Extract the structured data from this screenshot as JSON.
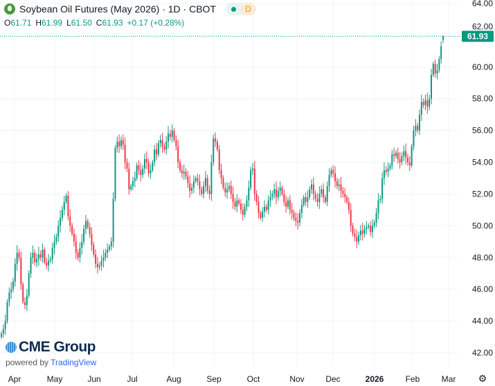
{
  "header": {
    "title": "Soybean Oil Futures (May 2026) · 1D · CBOT",
    "badge_letter": "D",
    "ohlc": {
      "o_label": "O",
      "o": "61.71",
      "h_label": "H",
      "h": "61.99",
      "l_label": "L",
      "l": "61.50",
      "c_label": "C",
      "c": "61.93",
      "change": "+0.17 (+0.28%)"
    }
  },
  "branding": {
    "logo": "CME Group",
    "powered_by": "powered by",
    "provider": "TradingView"
  },
  "colors": {
    "up": "#089981",
    "down": "#f23645",
    "grid": "#f0f3fa",
    "last_price": "#089981"
  },
  "icons": {
    "symbol": "soybean-oil-drop-icon",
    "settings": "settings-icon"
  },
  "chart_data": {
    "type": "candlestick",
    "interval": "1D",
    "last_price_label": "61.93",
    "last_bar": {
      "open": 61.71,
      "high": 61.99,
      "low": 61.5,
      "close": 61.93
    },
    "ylim": [
      42,
      64
    ],
    "y_ticks": [
      "64.00",
      "62.00",
      "60.00",
      "58.00",
      "56.00",
      "54.00",
      "52.00",
      "50.00",
      "48.00",
      "46.00",
      "44.00",
      "42.00"
    ],
    "x_ticks": [
      "Apr",
      "May",
      "Jun",
      "Jul",
      "Aug",
      "Sep",
      "Oct",
      "Nov",
      "Dec",
      "2026",
      "Feb",
      "Mar"
    ],
    "grid": true,
    "months": [
      {
        "label": "Apr",
        "closes": [
          43.2,
          43.5,
          44.0,
          45.2,
          45.8,
          46.0,
          46.5,
          47.6,
          48.3,
          48.0,
          46.3,
          45.2,
          45.0,
          45.6,
          47.0,
          48.0,
          48.3,
          47.7,
          47.9,
          48.2,
          48.0,
          48.5,
          47.7,
          47.5,
          47.8,
          47.9,
          48.6,
          49.0
        ]
      },
      {
        "label": "May",
        "closes": [
          49.3,
          50.0,
          50.5,
          51.0,
          51.5,
          51.9,
          50.6,
          50.0,
          49.5,
          49.0,
          48.3,
          48.0,
          48.6,
          49.0,
          49.8,
          50.3,
          49.9,
          49.5,
          48.8,
          48.2,
          47.6
        ]
      },
      {
        "label": "Jun",
        "closes": [
          47.4,
          47.5,
          47.8,
          48.0,
          48.3,
          48.5,
          48.7,
          49.0,
          51.7,
          54.9,
          55.3,
          55.0,
          55.4,
          55.1,
          54.0,
          53.6,
          52.3,
          52.5,
          52.8
        ]
      },
      {
        "label": "Jul",
        "closes": [
          53.0,
          53.8,
          53.5,
          53.2,
          53.6,
          54.2,
          54.0,
          53.3,
          53.5,
          54.0,
          54.8,
          54.5,
          55.2,
          55.4,
          55.0,
          54.8,
          55.3,
          55.8,
          55.6,
          56.0,
          55.4
        ]
      },
      {
        "label": "Aug",
        "closes": [
          55.0,
          54.0,
          53.5,
          53.3,
          53.4,
          53.1,
          52.7,
          52.2,
          52.4,
          52.8,
          53.0,
          52.8,
          52.3,
          52.0,
          52.5,
          53.0,
          52.2,
          52.0,
          54.0,
          55.5
        ]
      },
      {
        "label": "Sep",
        "closes": [
          55.3,
          54.8,
          53.5,
          53.0,
          52.4,
          52.1,
          52.3,
          52.5,
          52.0,
          51.5,
          51.2,
          51.6,
          51.4,
          51.0,
          50.7,
          51.2,
          51.6,
          52.4,
          53.5,
          53.6
        ]
      },
      {
        "label": "Oct",
        "closes": [
          52.0,
          51.5,
          50.8,
          50.5,
          50.9,
          51.2,
          51.0,
          51.6,
          51.8,
          52.0,
          52.3,
          51.8,
          52.2,
          52.4,
          52.0,
          51.5,
          51.2,
          51.6,
          51.0,
          50.8,
          50.5,
          50.3
        ]
      },
      {
        "label": "Nov",
        "closes": [
          50.2,
          50.8,
          51.3,
          51.8,
          51.5,
          51.8,
          52.3,
          52.6,
          52.0,
          51.7,
          51.5,
          52.0,
          52.3,
          51.8,
          51.5,
          52.5,
          53.2,
          53.5
        ]
      },
      {
        "label": "Dec",
        "closes": [
          53.3,
          52.8,
          52.5,
          52.6,
          52.2,
          52.0,
          51.8,
          51.5,
          51.0,
          50.0,
          49.5,
          49.3,
          49.0,
          49.4,
          49.7,
          49.5,
          49.8,
          49.9,
          50.0,
          49.6,
          50.0
        ]
      },
      {
        "label": "2026",
        "closes": [
          50.2,
          50.8,
          51.6,
          51.7,
          53.0,
          53.5,
          53.4,
          53.6,
          53.8,
          54.5,
          54.4,
          54.6,
          54.2,
          54.0,
          54.4,
          54.7,
          54.3,
          54.0,
          53.8
        ]
      },
      {
        "label": "Feb",
        "closes": [
          55.0,
          56.0,
          56.3,
          56.0,
          57.0,
          57.8,
          57.6,
          57.9,
          57.5,
          58.0,
          59.5,
          60.2,
          59.6,
          59.8,
          60.5,
          61.3,
          61.93
        ]
      }
    ]
  }
}
